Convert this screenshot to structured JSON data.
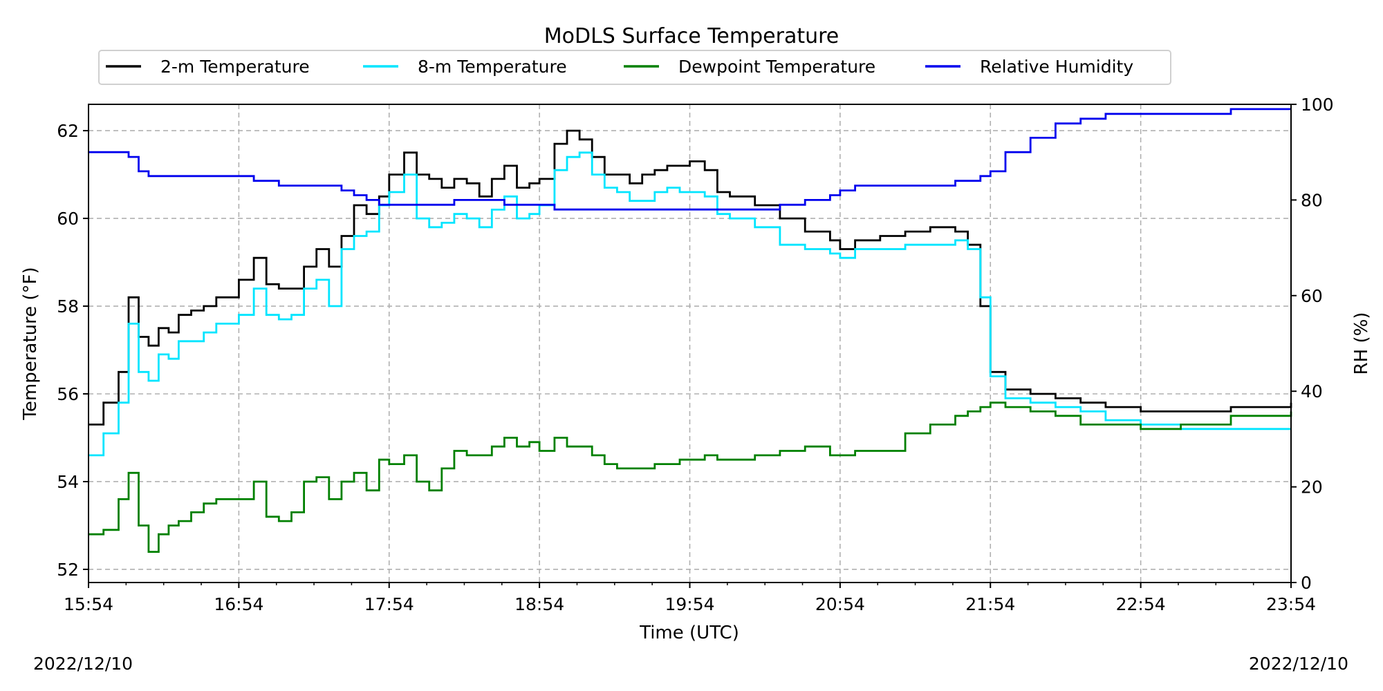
{
  "chart_data": {
    "type": "line",
    "title": "MoDLS Surface Temperature",
    "xlabel": "Time (UTC)",
    "ylabel": "Temperature (°F)",
    "ylabel_right": "RH (%)",
    "x_ticks": [
      "15:54",
      "16:54",
      "17:54",
      "18:54",
      "19:54",
      "20:54",
      "21:54",
      "22:54",
      "23:54"
    ],
    "xlim": [
      "15:54",
      "23:54"
    ],
    "ylim": [
      51.7,
      62.6
    ],
    "y_ticks": [
      52,
      54,
      56,
      58,
      60,
      62
    ],
    "ylim_right": [
      0,
      100
    ],
    "y_ticks_right": [
      0,
      20,
      40,
      60,
      80,
      100
    ],
    "grid": true,
    "legend_position": "top",
    "date_left": "2022/12/10",
    "date_right": "2022/12/10",
    "series": [
      {
        "name": "2-m Temperature",
        "color": "#000000",
        "axis": "left",
        "x": [
          "15:54",
          "16:00",
          "16:06",
          "16:10",
          "16:14",
          "16:18",
          "16:22",
          "16:26",
          "16:30",
          "16:35",
          "16:40",
          "16:45",
          "16:54",
          "17:00",
          "17:05",
          "17:10",
          "17:15",
          "17:20",
          "17:25",
          "17:30",
          "17:35",
          "17:40",
          "17:45",
          "17:50",
          "17:54",
          "18:00",
          "18:05",
          "18:10",
          "18:15",
          "18:20",
          "18:25",
          "18:30",
          "18:35",
          "18:40",
          "18:45",
          "18:50",
          "18:54",
          "19:00",
          "19:05",
          "19:10",
          "19:15",
          "19:20",
          "19:25",
          "19:30",
          "19:35",
          "19:40",
          "19:45",
          "19:50",
          "19:54",
          "20:00",
          "20:05",
          "20:10",
          "20:20",
          "20:30",
          "20:40",
          "20:50",
          "20:54",
          "21:00",
          "21:10",
          "21:20",
          "21:30",
          "21:40",
          "21:45",
          "21:50",
          "21:54",
          "22:00",
          "22:10",
          "22:20",
          "22:30",
          "22:40",
          "22:54",
          "23:10",
          "23:30",
          "23:54"
        ],
        "values": [
          55.3,
          55.8,
          56.5,
          58.2,
          57.3,
          57.1,
          57.5,
          57.4,
          57.8,
          57.9,
          58.0,
          58.2,
          58.6,
          59.1,
          58.5,
          58.4,
          58.4,
          58.9,
          59.3,
          58.9,
          59.6,
          60.3,
          60.1,
          60.5,
          61.0,
          61.5,
          61.0,
          60.9,
          60.7,
          60.9,
          60.8,
          60.5,
          60.9,
          61.2,
          60.7,
          60.8,
          60.9,
          61.7,
          62.0,
          61.8,
          61.4,
          61.0,
          61.0,
          60.8,
          61.0,
          61.1,
          61.2,
          61.2,
          61.3,
          61.1,
          60.6,
          60.5,
          60.3,
          60.0,
          59.7,
          59.5,
          59.3,
          59.5,
          59.6,
          59.7,
          59.8,
          59.7,
          59.4,
          58.0,
          56.5,
          56.1,
          56.0,
          55.9,
          55.8,
          55.7,
          55.6,
          55.6,
          55.7,
          55.8
        ]
      },
      {
        "name": "8-m Temperature",
        "color": "#00e5ff",
        "axis": "left",
        "x": [
          "15:54",
          "16:00",
          "16:06",
          "16:10",
          "16:14",
          "16:18",
          "16:22",
          "16:26",
          "16:30",
          "16:35",
          "16:40",
          "16:45",
          "16:54",
          "17:00",
          "17:05",
          "17:10",
          "17:15",
          "17:20",
          "17:25",
          "17:30",
          "17:35",
          "17:40",
          "17:45",
          "17:50",
          "17:54",
          "18:00",
          "18:05",
          "18:10",
          "18:15",
          "18:20",
          "18:25",
          "18:30",
          "18:35",
          "18:40",
          "18:45",
          "18:50",
          "18:54",
          "19:00",
          "19:05",
          "19:10",
          "19:15",
          "19:20",
          "19:25",
          "19:30",
          "19:35",
          "19:40",
          "19:45",
          "19:50",
          "19:54",
          "20:00",
          "20:05",
          "20:10",
          "20:20",
          "20:30",
          "20:40",
          "20:50",
          "20:54",
          "21:00",
          "21:10",
          "21:20",
          "21:30",
          "21:40",
          "21:45",
          "21:50",
          "21:54",
          "22:00",
          "22:10",
          "22:20",
          "22:30",
          "22:40",
          "22:54",
          "23:10",
          "23:30",
          "23:54"
        ],
        "values": [
          54.6,
          55.1,
          55.8,
          57.6,
          56.5,
          56.3,
          56.9,
          56.8,
          57.2,
          57.2,
          57.4,
          57.6,
          57.8,
          58.4,
          57.8,
          57.7,
          57.8,
          58.4,
          58.6,
          58.0,
          59.3,
          59.6,
          59.7,
          60.3,
          60.6,
          61.0,
          60.0,
          59.8,
          59.9,
          60.1,
          60.0,
          59.8,
          60.2,
          60.5,
          60.0,
          60.1,
          60.3,
          61.1,
          61.4,
          61.5,
          61.0,
          60.7,
          60.6,
          60.4,
          60.4,
          60.6,
          60.7,
          60.6,
          60.6,
          60.5,
          60.1,
          60.0,
          59.8,
          59.4,
          59.3,
          59.2,
          59.1,
          59.3,
          59.3,
          59.4,
          59.4,
          59.5,
          59.3,
          58.2,
          56.4,
          55.9,
          55.8,
          55.7,
          55.6,
          55.4,
          55.3,
          55.2,
          55.2,
          55.2
        ]
      },
      {
        "name": "Dewpoint Temperature",
        "color": "#008000",
        "axis": "left",
        "x": [
          "15:54",
          "16:00",
          "16:06",
          "16:10",
          "16:14",
          "16:18",
          "16:22",
          "16:26",
          "16:30",
          "16:35",
          "16:40",
          "16:45",
          "16:54",
          "17:00",
          "17:05",
          "17:10",
          "17:15",
          "17:20",
          "17:25",
          "17:30",
          "17:35",
          "17:40",
          "17:45",
          "17:50",
          "17:54",
          "18:00",
          "18:05",
          "18:10",
          "18:15",
          "18:20",
          "18:25",
          "18:30",
          "18:35",
          "18:40",
          "18:45",
          "18:50",
          "18:54",
          "19:00",
          "19:05",
          "19:10",
          "19:15",
          "19:20",
          "19:25",
          "19:30",
          "19:35",
          "19:40",
          "19:45",
          "19:50",
          "19:54",
          "20:00",
          "20:05",
          "20:10",
          "20:20",
          "20:30",
          "20:40",
          "20:50",
          "20:54",
          "21:00",
          "21:10",
          "21:20",
          "21:30",
          "21:40",
          "21:45",
          "21:50",
          "21:54",
          "22:00",
          "22:10",
          "22:20",
          "22:30",
          "22:40",
          "22:54",
          "23:10",
          "23:30",
          "23:54"
        ],
        "values": [
          52.8,
          52.9,
          53.6,
          54.2,
          53.0,
          52.4,
          52.8,
          53.0,
          53.1,
          53.3,
          53.5,
          53.6,
          53.6,
          54.0,
          53.2,
          53.1,
          53.3,
          54.0,
          54.1,
          53.6,
          54.0,
          54.2,
          53.8,
          54.5,
          54.4,
          54.6,
          54.0,
          53.8,
          54.3,
          54.7,
          54.6,
          54.6,
          54.8,
          55.0,
          54.8,
          54.9,
          54.7,
          55.0,
          54.8,
          54.8,
          54.6,
          54.4,
          54.3,
          54.3,
          54.3,
          54.4,
          54.4,
          54.5,
          54.5,
          54.6,
          54.5,
          54.5,
          54.6,
          54.7,
          54.8,
          54.6,
          54.6,
          54.7,
          54.7,
          55.1,
          55.3,
          55.5,
          55.6,
          55.7,
          55.8,
          55.7,
          55.6,
          55.5,
          55.3,
          55.3,
          55.2,
          55.3,
          55.5,
          55.6
        ]
      },
      {
        "name": "Relative Humidity",
        "color": "#0000ee",
        "axis": "right",
        "x": [
          "15:54",
          "16:00",
          "16:06",
          "16:10",
          "16:14",
          "16:18",
          "16:22",
          "16:26",
          "16:30",
          "16:35",
          "16:40",
          "16:45",
          "16:54",
          "17:00",
          "17:05",
          "17:10",
          "17:15",
          "17:20",
          "17:25",
          "17:30",
          "17:35",
          "17:40",
          "17:45",
          "17:50",
          "17:54",
          "18:00",
          "18:05",
          "18:10",
          "18:15",
          "18:20",
          "18:25",
          "18:30",
          "18:35",
          "18:40",
          "18:45",
          "18:50",
          "18:54",
          "19:00",
          "19:05",
          "19:10",
          "19:15",
          "19:20",
          "19:25",
          "19:30",
          "19:35",
          "19:40",
          "19:45",
          "19:50",
          "19:54",
          "20:00",
          "20:05",
          "20:10",
          "20:20",
          "20:30",
          "20:40",
          "20:50",
          "20:54",
          "21:00",
          "21:10",
          "21:20",
          "21:30",
          "21:40",
          "21:45",
          "21:50",
          "21:54",
          "22:00",
          "22:10",
          "22:20",
          "22:30",
          "22:40",
          "22:54",
          "23:10",
          "23:30",
          "23:54"
        ],
        "values": [
          90,
          90,
          90,
          89,
          86,
          85,
          85,
          85,
          85,
          85,
          85,
          85,
          85,
          84,
          84,
          83,
          83,
          83,
          83,
          83,
          82,
          81,
          80,
          79,
          79,
          79,
          79,
          79,
          79,
          80,
          80,
          80,
          80,
          79,
          79,
          79,
          79,
          78,
          78,
          78,
          78,
          78,
          78,
          78,
          78,
          78,
          78,
          78,
          78,
          78,
          78,
          78,
          78,
          79,
          80,
          81,
          82,
          83,
          83,
          83,
          83,
          84,
          84,
          85,
          86,
          90,
          93,
          96,
          97,
          98,
          98,
          98,
          99,
          99
        ]
      }
    ]
  }
}
